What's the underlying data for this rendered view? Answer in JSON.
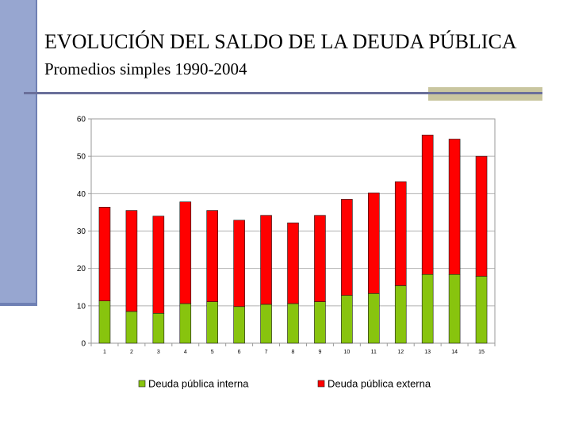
{
  "slide": {
    "title": "EVOLUCIÓN DEL SALDO DE LA DEUDA PÚBLICA",
    "subtitle": "Promedios simples 1990-2004"
  },
  "chart_data": {
    "type": "bar",
    "stacked": true,
    "categories": [
      "1",
      "2",
      "3",
      "4",
      "5",
      "6",
      "7",
      "8",
      "9",
      "10",
      "11",
      "12",
      "13",
      "14",
      "15"
    ],
    "series": [
      {
        "name": "Deuda pública interna",
        "color": "#88c40e",
        "values": [
          11.3,
          8.5,
          8.0,
          10.6,
          11.1,
          9.8,
          10.4,
          10.6,
          11.1,
          12.8,
          13.3,
          15.4,
          18.4,
          18.4,
          17.9
        ]
      },
      {
        "name": "Deuda pública externna",
        "color": "#ff0000",
        "values": [
          25.1,
          27.0,
          26.0,
          27.2,
          24.4,
          23.1,
          23.8,
          21.6,
          23.1,
          25.7,
          26.9,
          27.8,
          37.3,
          36.2,
          32.1
        ]
      }
    ],
    "legend_labels": [
      "Deuda pública interna",
      "Deuda pública externa"
    ],
    "y_ticks": [
      "0",
      "10",
      "20",
      "30",
      "40",
      "50",
      "60"
    ],
    "ylim": [
      0,
      60
    ],
    "grid": "horizontal",
    "legend": "bottom"
  }
}
